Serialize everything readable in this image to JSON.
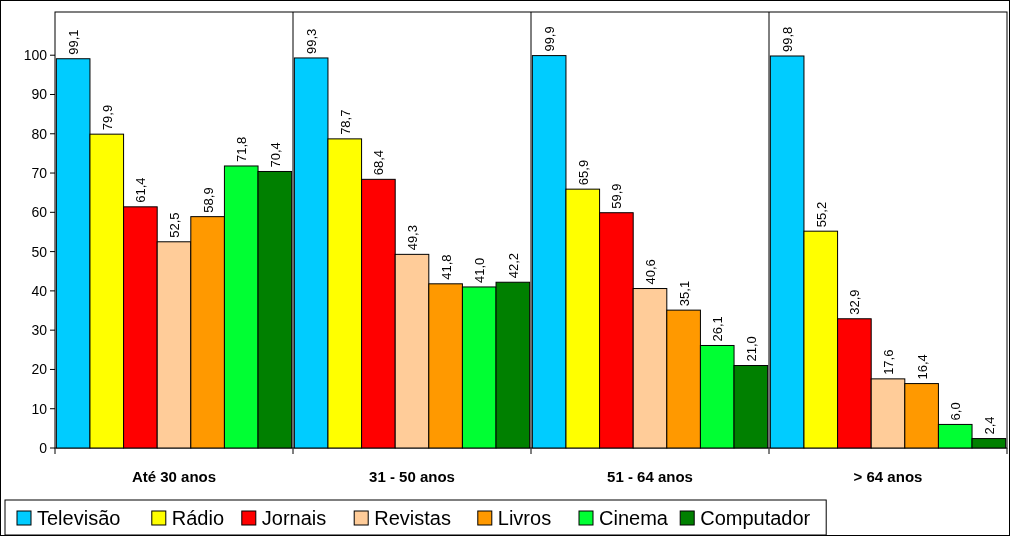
{
  "chart_data": {
    "type": "bar",
    "categories": [
      "Até 30 anos",
      "31 - 50 anos",
      "51 - 64 anos",
      "> 64 anos"
    ],
    "series": [
      {
        "name": "Televisão",
        "color": "#00ccff",
        "values": [
          99.1,
          99.3,
          99.9,
          99.8
        ],
        "value_labels": [
          "99,1",
          "99,3",
          "99,9",
          "99,8"
        ]
      },
      {
        "name": "Rádio",
        "color": "#ffff00",
        "values": [
          79.9,
          78.7,
          65.9,
          55.2
        ],
        "value_labels": [
          "79,9",
          "78,7",
          "65,9",
          "55,2"
        ]
      },
      {
        "name": "Jornais",
        "color": "#ff0000",
        "values": [
          61.4,
          68.4,
          59.9,
          32.9
        ],
        "value_labels": [
          "61,4",
          "68,4",
          "59,9",
          "32,9"
        ]
      },
      {
        "name": "Revistas",
        "color": "#ffcc99",
        "values": [
          52.5,
          49.3,
          40.6,
          17.6
        ],
        "value_labels": [
          "52,5",
          "49,3",
          "40,6",
          "17,6"
        ]
      },
      {
        "name": "Livros",
        "color": "#ff9900",
        "values": [
          58.9,
          41.8,
          35.1,
          16.4
        ],
        "value_labels": [
          "58,9",
          "41,8",
          "35,1",
          "16,4"
        ]
      },
      {
        "name": "Cinema",
        "color": "#00ff33",
        "values": [
          71.8,
          41.0,
          26.1,
          6.0
        ],
        "value_labels": [
          "71,8",
          "41,0",
          "26,1",
          "6,0"
        ]
      },
      {
        "name": "Computador",
        "color": "#008000",
        "values": [
          70.4,
          42.2,
          21.0,
          2.4
        ],
        "value_labels": [
          "70,4",
          "42,2",
          "21,0",
          "2,4"
        ]
      }
    ],
    "ylim": [
      0,
      111
    ],
    "yticks": [
      0,
      10,
      20,
      30,
      40,
      50,
      60,
      70,
      80,
      90,
      100
    ],
    "grid": false,
    "legend": "bottom"
  }
}
